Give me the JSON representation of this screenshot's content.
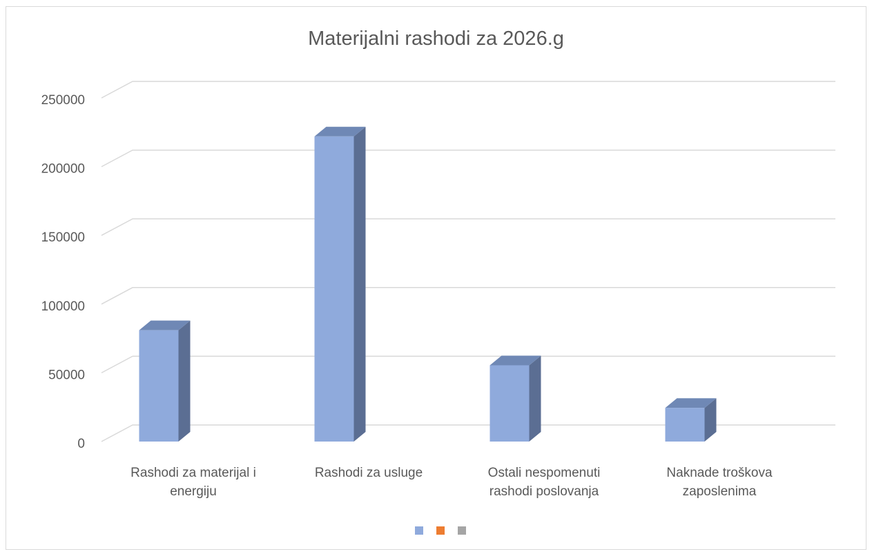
{
  "chart_data": {
    "type": "bar",
    "title": "Materijalni rashodi za 2026.g",
    "categories": [
      [
        "Rashodi za materijal i",
        "energiju"
      ],
      [
        "Rashodi za usluge"
      ],
      [
        "Ostali nespomenuti",
        "rashodi poslovanja"
      ],
      [
        "Naknade troškova",
        "zaposlenima"
      ]
    ],
    "series": [
      {
        "values": [
          81000,
          222000,
          55500,
          24500
        ],
        "color": "#8faadc"
      }
    ],
    "ylim": [
      0,
      250000
    ],
    "yticks": [
      0,
      50000,
      100000,
      150000,
      200000,
      250000
    ],
    "grid": true,
    "legend_position": "bottom",
    "legend_colors": [
      "#8faadc",
      "#ed7d31",
      "#a5a5a5"
    ],
    "xlabel": "",
    "ylabel": ""
  }
}
